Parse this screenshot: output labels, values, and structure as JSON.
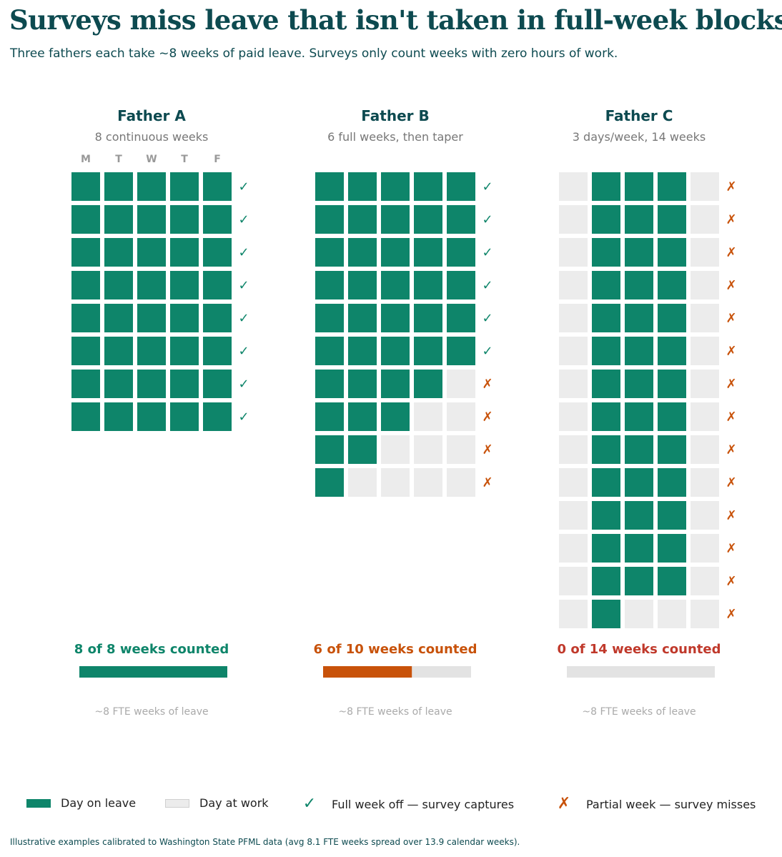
{
  "title": "Surveys miss leave that isn't taken in full-week blocks",
  "subtitle": "Three fathers each take ~8 weeks of paid leave. Surveys only count weeks with zero hours of work.",
  "colors": {
    "leave": "#0e856a",
    "work": "#ececec",
    "heading": "#0d4a50",
    "captured": "#0e856a",
    "missed": "#c8520a",
    "none_counted": "#c0392b",
    "bar_track": "#e3e3e3"
  },
  "day_labels": [
    "M",
    "T",
    "W",
    "T",
    "F"
  ],
  "chart_data": {
    "type": "waffle",
    "title": "Surveys miss leave that isn't taken in full-week blocks",
    "fathers": [
      {
        "name": "Father A",
        "description": "8 continuous weeks",
        "weeks": [
          [
            1,
            1,
            1,
            1,
            1
          ],
          [
            1,
            1,
            1,
            1,
            1
          ],
          [
            1,
            1,
            1,
            1,
            1
          ],
          [
            1,
            1,
            1,
            1,
            1
          ],
          [
            1,
            1,
            1,
            1,
            1
          ],
          [
            1,
            1,
            1,
            1,
            1
          ],
          [
            1,
            1,
            1,
            1,
            1
          ],
          [
            1,
            1,
            1,
            1,
            1
          ]
        ],
        "weeks_counted": 8,
        "weeks_total": 8,
        "counted_label": "8 of 8 weeks counted",
        "fte_note": "~8 FTE weeks of leave"
      },
      {
        "name": "Father B",
        "description": "6 full weeks, then taper",
        "weeks": [
          [
            1,
            1,
            1,
            1,
            1
          ],
          [
            1,
            1,
            1,
            1,
            1
          ],
          [
            1,
            1,
            1,
            1,
            1
          ],
          [
            1,
            1,
            1,
            1,
            1
          ],
          [
            1,
            1,
            1,
            1,
            1
          ],
          [
            1,
            1,
            1,
            1,
            1
          ],
          [
            1,
            1,
            1,
            1,
            0
          ],
          [
            1,
            1,
            1,
            0,
            0
          ],
          [
            1,
            1,
            0,
            0,
            0
          ],
          [
            1,
            0,
            0,
            0,
            0
          ]
        ],
        "weeks_counted": 6,
        "weeks_total": 10,
        "counted_label": "6 of 10 weeks counted",
        "fte_note": "~8 FTE weeks of leave"
      },
      {
        "name": "Father C",
        "description": "3 days/week, 14 weeks",
        "weeks": [
          [
            0,
            1,
            1,
            1,
            0
          ],
          [
            0,
            1,
            1,
            1,
            0
          ],
          [
            0,
            1,
            1,
            1,
            0
          ],
          [
            0,
            1,
            1,
            1,
            0
          ],
          [
            0,
            1,
            1,
            1,
            0
          ],
          [
            0,
            1,
            1,
            1,
            0
          ],
          [
            0,
            1,
            1,
            1,
            0
          ],
          [
            0,
            1,
            1,
            1,
            0
          ],
          [
            0,
            1,
            1,
            1,
            0
          ],
          [
            0,
            1,
            1,
            1,
            0
          ],
          [
            0,
            1,
            1,
            1,
            0
          ],
          [
            0,
            1,
            1,
            1,
            0
          ],
          [
            0,
            1,
            1,
            1,
            0
          ],
          [
            0,
            1,
            0,
            0,
            0
          ]
        ],
        "weeks_counted": 0,
        "weeks_total": 14,
        "counted_label": "0 of 14 weeks counted",
        "fte_note": "~8 FTE weeks of leave"
      }
    ]
  },
  "legend": {
    "leave": "Day on leave",
    "work": "Day at work",
    "captured_glyph": "✓",
    "captured": "Full week off — survey captures",
    "missed_glyph": "✗",
    "missed": "Partial week — survey misses"
  },
  "footnote": "Illustrative examples calibrated to Washington State PFML data (avg 8.1 FTE weeks spread over 13.9 calendar weeks)."
}
